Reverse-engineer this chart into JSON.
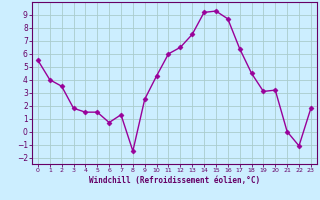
{
  "x": [
    0,
    1,
    2,
    3,
    4,
    5,
    6,
    7,
    8,
    9,
    10,
    11,
    12,
    13,
    14,
    15,
    16,
    17,
    18,
    19,
    20,
    21,
    22,
    23
  ],
  "y": [
    5.5,
    4.0,
    3.5,
    1.8,
    1.5,
    1.5,
    0.7,
    1.3,
    -1.5,
    2.5,
    4.3,
    6.0,
    6.5,
    7.5,
    9.2,
    9.3,
    8.7,
    6.4,
    4.5,
    3.1,
    3.2,
    0.0,
    -1.1,
    1.8
  ],
  "line_color": "#990099",
  "marker": "D",
  "markersize": 2.5,
  "linewidth": 1.0,
  "bg_color": "#cceeff",
  "grid_color": "#aacccc",
  "xlabel": "Windchill (Refroidissement éolien,°C)",
  "xlim": [
    -0.5,
    23.5
  ],
  "ylim": [
    -2.5,
    10.0
  ],
  "yticks": [
    -2,
    -1,
    0,
    1,
    2,
    3,
    4,
    5,
    6,
    7,
    8,
    9
  ],
  "xticks": [
    0,
    1,
    2,
    3,
    4,
    5,
    6,
    7,
    8,
    9,
    10,
    11,
    12,
    13,
    14,
    15,
    16,
    17,
    18,
    19,
    20,
    21,
    22,
    23
  ],
  "tick_color": "#660066",
  "label_color": "#660066",
  "spine_color": "#660066"
}
